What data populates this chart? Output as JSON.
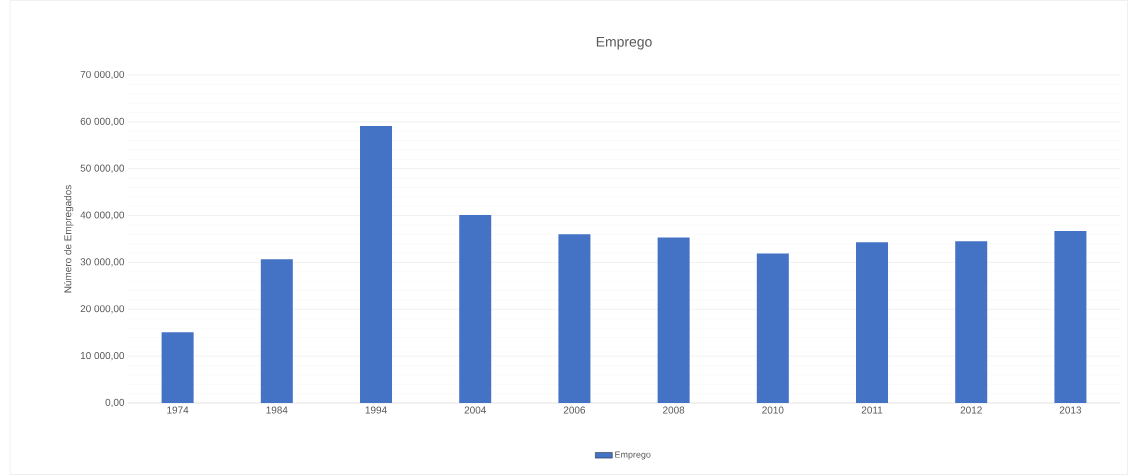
{
  "chart_data": {
    "type": "bar",
    "title": "Emprego",
    "ylabel": "Número de Empregados",
    "categories": [
      "1974",
      "1984",
      "1994",
      "2004",
      "2006",
      "2008",
      "2010",
      "2011",
      "2012",
      "2013"
    ],
    "series": [
      {
        "name": "Emprego",
        "color": "#4472c4",
        "values": [
          15100,
          30700,
          59100,
          40100,
          36000,
          35300,
          31900,
          34300,
          34500,
          36700
        ]
      }
    ],
    "ylim": [
      0,
      70000
    ],
    "yticks": [
      {
        "value": 0,
        "label": "0,00"
      },
      {
        "value": 10000,
        "label": "10 000,00"
      },
      {
        "value": 20000,
        "label": "20 000,00"
      },
      {
        "value": 30000,
        "label": "30 000,00"
      },
      {
        "value": 40000,
        "label": "40 000,00"
      },
      {
        "value": 50000,
        "label": "50 000,00"
      },
      {
        "value": 60000,
        "label": "60 000,00"
      },
      {
        "value": 70000,
        "label": "70 000,00"
      }
    ],
    "grid": "y",
    "legend": "bottom"
  }
}
